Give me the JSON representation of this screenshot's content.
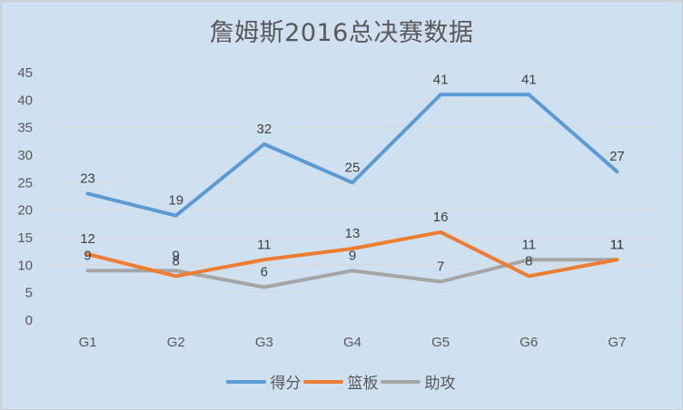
{
  "chart_data": {
    "type": "line",
    "title": "詹姆斯2016总决赛数据",
    "xlabel": "",
    "ylabel": "",
    "categories": [
      "G1",
      "G2",
      "G3",
      "G4",
      "G5",
      "G6",
      "G7"
    ],
    "series": [
      {
        "name": "得分",
        "color": "#5b9bd5",
        "values": [
          23,
          19,
          32,
          25,
          41,
          41,
          27
        ]
      },
      {
        "name": "篮板",
        "color": "#ed7d31",
        "values": [
          12,
          8,
          11,
          13,
          16,
          8,
          11
        ]
      },
      {
        "name": "助攻",
        "color": "#a5a5a5",
        "values": [
          9,
          9,
          6,
          9,
          7,
          11,
          11
        ]
      }
    ],
    "ylim": [
      0,
      45
    ],
    "yticks": [
      0,
      5,
      10,
      15,
      20,
      25,
      30,
      35,
      40,
      45
    ],
    "grid": true,
    "legend_position": "bottom",
    "data_labels": true
  }
}
